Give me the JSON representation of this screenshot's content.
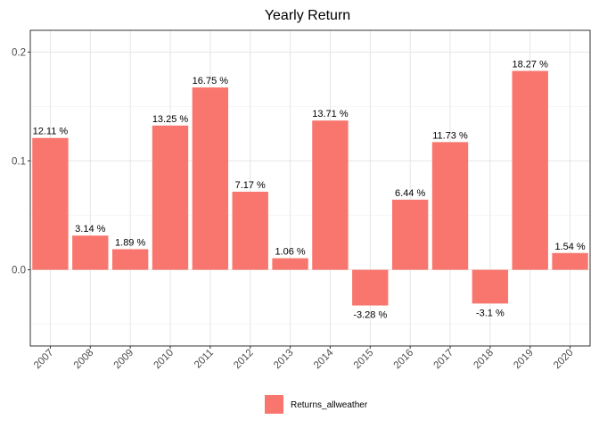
{
  "chart_data": {
    "type": "bar",
    "title": "Yearly Return",
    "xlabel": "",
    "ylabel": "",
    "ylim": [
      -0.07,
      0.22
    ],
    "yticks": [
      0.0,
      0.1,
      0.2
    ],
    "ytick_labels": [
      "0.0",
      "0.1",
      "0.2"
    ],
    "grid": true,
    "legend_position": "bottom",
    "bar_color": "#F8766D",
    "categories": [
      "2007",
      "2008",
      "2009",
      "2010",
      "2011",
      "2012",
      "2013",
      "2014",
      "2015",
      "2016",
      "2017",
      "2018",
      "2019",
      "2020"
    ],
    "series": [
      {
        "name": "Returns_allweather",
        "values": [
          0.1211,
          0.0314,
          0.0189,
          0.1325,
          0.1675,
          0.0717,
          0.0106,
          0.1371,
          -0.0328,
          0.0644,
          0.1173,
          -0.031,
          0.1827,
          0.0154
        ],
        "labels": [
          "12.11 %",
          "3.14 %",
          "1.89 %",
          "13.25 %",
          "16.75 %",
          "7.17 %",
          "1.06 %",
          "13.71 %",
          "-3.28 %",
          "6.44 %",
          "11.73 %",
          "-3.1 %",
          "18.27 %",
          "1.54 %"
        ]
      }
    ]
  }
}
